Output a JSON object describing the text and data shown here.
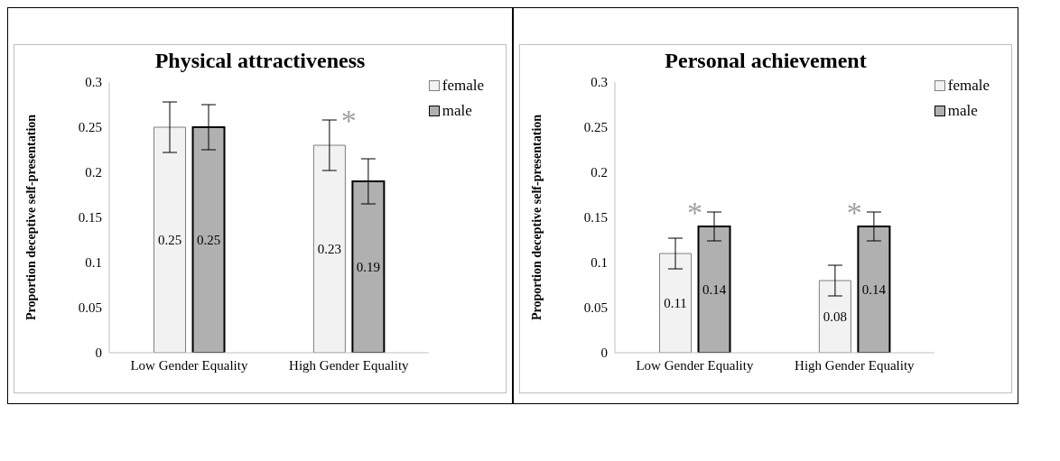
{
  "chart_data": [
    {
      "type": "bar",
      "title": "Physical attractiveness",
      "ylabel": "Proportion deceptive self-presentation",
      "categories": [
        "Low Gender Equality",
        "High Gender Equality"
      ],
      "series": [
        {
          "name": "female",
          "color": "#f2f2f2",
          "values": [
            0.25,
            0.23
          ],
          "errors": [
            0.028,
            0.028
          ]
        },
        {
          "name": "male",
          "color": "#b0b0b0",
          "values": [
            0.25,
            0.19
          ],
          "errors": [
            0.025,
            0.025
          ]
        }
      ],
      "ylim": [
        0,
        0.3
      ],
      "yticks": [
        0,
        0.05,
        0.1,
        0.15,
        0.2,
        0.25,
        0.3
      ],
      "grid": false,
      "legend": "top right",
      "data_labels": true,
      "annotations": [
        "*"
      ]
    },
    {
      "type": "bar",
      "title": "Personal achievement",
      "ylabel": "Proportion deceptive self-presentation",
      "categories": [
        "Low Gender Equality",
        "High Gender Equality"
      ],
      "series": [
        {
          "name": "female",
          "color": "#f2f2f2",
          "values": [
            0.11,
            0.08
          ],
          "errors": [
            0.017,
            0.017
          ]
        },
        {
          "name": "male",
          "color": "#b0b0b0",
          "values": [
            0.14,
            0.14
          ],
          "errors": [
            0.016,
            0.016
          ]
        }
      ],
      "ylim": [
        0,
        0.3
      ],
      "yticks": [
        0,
        0.05,
        0.1,
        0.15,
        0.2,
        0.25,
        0.3
      ],
      "grid": false,
      "legend": "top right",
      "data_labels": true,
      "annotations": [
        "*",
        "*"
      ]
    }
  ]
}
